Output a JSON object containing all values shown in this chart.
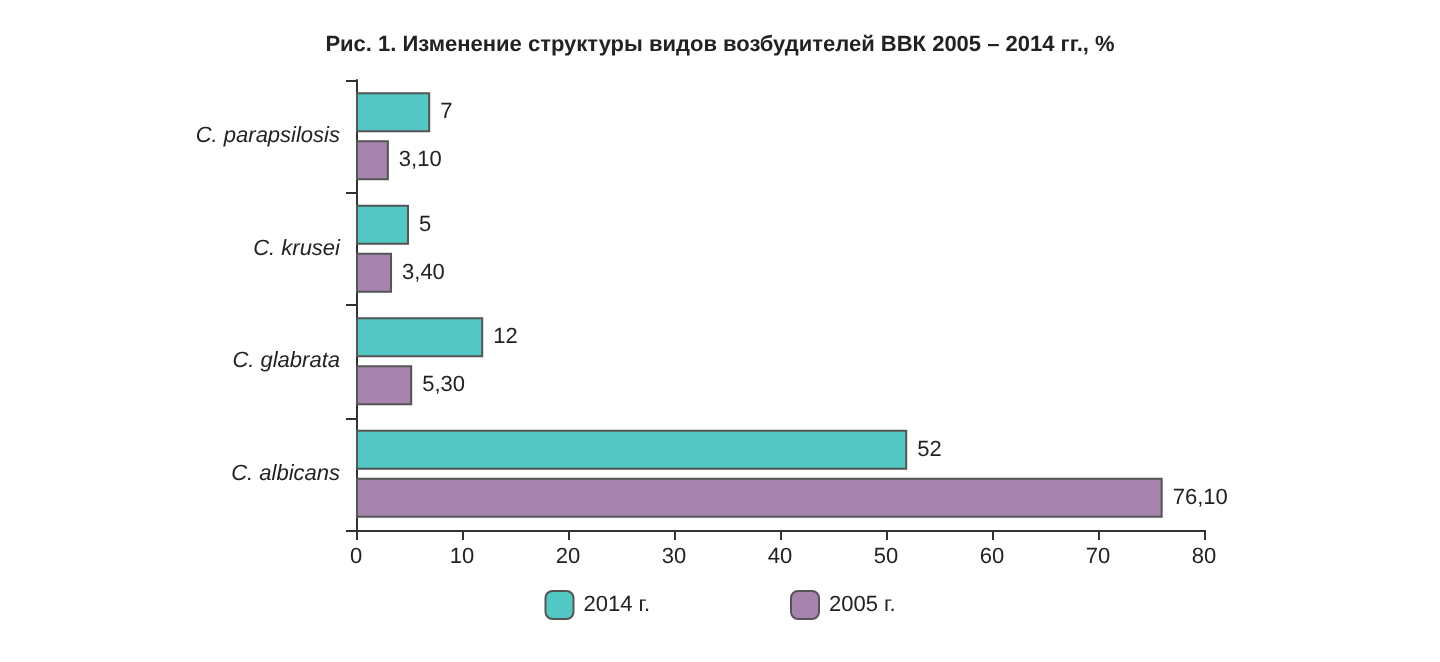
{
  "chart_data": {
    "type": "bar",
    "orientation": "horizontal",
    "title": "Рис. 1. Изменение структуры видов возбудителей ВВК 2005 – 2014 гг., %",
    "categories": [
      "C. parapsilosis",
      "C. krusei",
      "C. glabrata",
      "C. albicans"
    ],
    "series": [
      {
        "name": "2014 г.",
        "color": "#52c7c3",
        "values": [
          7,
          5,
          12,
          52
        ],
        "value_labels": [
          "7",
          "5",
          "12",
          "52"
        ]
      },
      {
        "name": "2005 г.",
        "color": "#a784ae",
        "values": [
          3.1,
          3.4,
          5.3,
          76.1
        ],
        "value_labels": [
          "3,10",
          "3,40",
          "5,30",
          "76,10"
        ]
      }
    ],
    "xlim": [
      0,
      80
    ],
    "xticks": [
      0,
      10,
      20,
      30,
      40,
      50,
      60,
      70,
      80
    ],
    "grid": false,
    "legend": "bottom"
  }
}
